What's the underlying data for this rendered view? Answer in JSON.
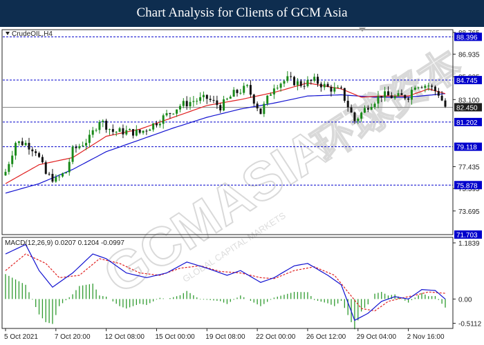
{
  "page": {
    "title": "Chart Analysis for Clients of GCM Asia"
  },
  "watermark": {
    "main": "GCMASIA",
    "cjk": "环球资本",
    "sub": "GLOBAL CAPITAL MARKETS"
  },
  "colors": {
    "header_bg": "#0e2d4f",
    "bull": "#1a8a1a",
    "bear": "#111111",
    "fast_ma": "#e02020",
    "slow_ma": "#1010d0",
    "macd_line": "#1010d0",
    "signal_line": "#e02020",
    "hist": "#2e9a2e",
    "level_line": "#0000cc",
    "level_label_bg": "#0000cc",
    "price_label_bg": "#1f1f1f"
  },
  "chart_data": [
    {
      "type": "candlestick",
      "symbol_label": "CrudeOIL,H4",
      "y_axis_ticks": [
        "88.765",
        "86.935",
        "85.025",
        "83.100",
        "77.435",
        "75.595",
        "73.695"
      ],
      "ylim": [
        71.7,
        89.0
      ],
      "levels": [
        {
          "value": 88.396,
          "label": "88.396"
        },
        {
          "value": 84.745,
          "label": "84.745"
        },
        {
          "value": 81.202,
          "label": "81.202"
        },
        {
          "value": 79.118,
          "label": "79.118"
        },
        {
          "value": 75.878,
          "label": "75.878"
        },
        {
          "value": 71.703,
          "label": "71.703"
        }
      ],
      "current_price": {
        "value": 82.45,
        "label": "82.450"
      },
      "close_path": [
        [
          0,
          77.0
        ],
        [
          3,
          79.5
        ],
        [
          6,
          79.4
        ],
        [
          9,
          78.8
        ],
        [
          12,
          76.8
        ],
        [
          15,
          76.3
        ],
        [
          18,
          77.0
        ],
        [
          20,
          78.8
        ],
        [
          25,
          79.8
        ],
        [
          28,
          81.4
        ],
        [
          32,
          80.4
        ],
        [
          36,
          80.4
        ],
        [
          40,
          80.3
        ],
        [
          44,
          81.0
        ],
        [
          48,
          81.8
        ],
        [
          52,
          82.6
        ],
        [
          56,
          83.0
        ],
        [
          60,
          83.2
        ],
        [
          64,
          82.5
        ],
        [
          68,
          83.6
        ],
        [
          72,
          84.1
        ],
        [
          76,
          82.0
        ],
        [
          80,
          84.3
        ],
        [
          84,
          84.8
        ],
        [
          88,
          84.4
        ],
        [
          92,
          84.7
        ],
        [
          96,
          84.1
        ],
        [
          100,
          83.8
        ],
        [
          104,
          81.3
        ],
        [
          108,
          82.6
        ],
        [
          112,
          83.5
        ],
        [
          116,
          83.3
        ],
        [
          120,
          83.4
        ],
        [
          122,
          84.4
        ],
        [
          126,
          84.3
        ],
        [
          129,
          83.6
        ],
        [
          131,
          82.5
        ]
      ],
      "fast_ma_path": [
        [
          0,
          76.0
        ],
        [
          10,
          77.6
        ],
        [
          20,
          78.2
        ],
        [
          30,
          80.0
        ],
        [
          40,
          80.6
        ],
        [
          50,
          81.6
        ],
        [
          60,
          82.6
        ],
        [
          70,
          83.1
        ],
        [
          80,
          83.7
        ],
        [
          90,
          84.5
        ],
        [
          100,
          84.0
        ],
        [
          106,
          83.3
        ],
        [
          112,
          83.4
        ],
        [
          120,
          83.4
        ],
        [
          126,
          84.0
        ],
        [
          131,
          83.6
        ]
      ],
      "slow_ma_path": [
        [
          0,
          75.2
        ],
        [
          10,
          76.0
        ],
        [
          20,
          77.2
        ],
        [
          30,
          78.7
        ],
        [
          40,
          79.7
        ],
        [
          50,
          80.7
        ],
        [
          60,
          81.6
        ],
        [
          70,
          82.3
        ],
        [
          80,
          82.8
        ],
        [
          90,
          83.4
        ],
        [
          100,
          83.5
        ],
        [
          110,
          83.3
        ],
        [
          120,
          83.3
        ],
        [
          131,
          83.6
        ]
      ]
    },
    {
      "type": "line",
      "label": "MACD(12,26,9) 0.0207 0.1204 -0.0997",
      "y_axis_ticks": [
        "1.1839",
        "0.00",
        "-0.5112"
      ],
      "ylim": [
        -0.62,
        1.3
      ],
      "macd_path": [
        [
          0,
          0.95
        ],
        [
          6,
          1.15
        ],
        [
          10,
          0.6
        ],
        [
          14,
          0.25
        ],
        [
          20,
          0.55
        ],
        [
          26,
          0.95
        ],
        [
          30,
          0.85
        ],
        [
          36,
          0.55
        ],
        [
          42,
          0.45
        ],
        [
          48,
          0.55
        ],
        [
          54,
          0.78
        ],
        [
          60,
          0.65
        ],
        [
          66,
          0.5
        ],
        [
          70,
          0.6
        ],
        [
          76,
          0.35
        ],
        [
          80,
          0.45
        ],
        [
          86,
          0.7
        ],
        [
          90,
          0.75
        ],
        [
          96,
          0.5
        ],
        [
          100,
          0.3
        ],
        [
          104,
          -0.45
        ],
        [
          108,
          -0.3
        ],
        [
          112,
          -0.05
        ],
        [
          116,
          0.05
        ],
        [
          120,
          0.0
        ],
        [
          124,
          0.2
        ],
        [
          128,
          0.18
        ],
        [
          131,
          0.0
        ]
      ],
      "signal_path": [
        [
          0,
          0.6
        ],
        [
          6,
          0.95
        ],
        [
          12,
          0.75
        ],
        [
          16,
          0.45
        ],
        [
          22,
          0.5
        ],
        [
          28,
          0.85
        ],
        [
          34,
          0.75
        ],
        [
          40,
          0.55
        ],
        [
          46,
          0.5
        ],
        [
          52,
          0.65
        ],
        [
          58,
          0.7
        ],
        [
          64,
          0.58
        ],
        [
          70,
          0.55
        ],
        [
          76,
          0.45
        ],
        [
          80,
          0.43
        ],
        [
          86,
          0.6
        ],
        [
          92,
          0.68
        ],
        [
          98,
          0.5
        ],
        [
          102,
          0.15
        ],
        [
          106,
          -0.2
        ],
        [
          110,
          -0.25
        ],
        [
          114,
          -0.05
        ],
        [
          118,
          0.02
        ],
        [
          122,
          0.08
        ],
        [
          126,
          0.15
        ],
        [
          131,
          0.12
        ]
      ]
    }
  ],
  "x_axis_labels": [
    {
      "bar": 0,
      "text": "5 Oct 2021"
    },
    {
      "bar": 15,
      "text": "7 Oct 20:00"
    },
    {
      "bar": 30,
      "text": "12 Oct 08:00"
    },
    {
      "bar": 45,
      "text": "15 Oct 00:00"
    },
    {
      "bar": 60,
      "text": "19 Oct 08:00"
    },
    {
      "bar": 75,
      "text": "22 Oct 00:00"
    },
    {
      "bar": 90,
      "text": "26 Oct 12:00"
    },
    {
      "bar": 105,
      "text": "29 Oct 04:00"
    },
    {
      "bar": 120,
      "text": "2 Nov 16:00"
    }
  ]
}
